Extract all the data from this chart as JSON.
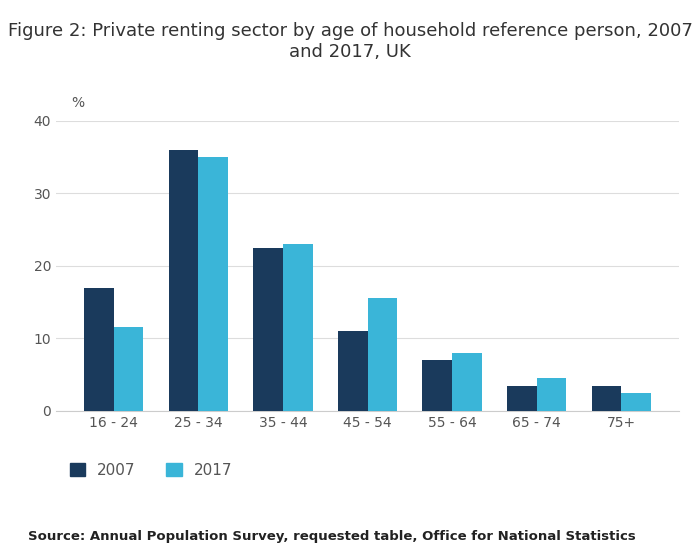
{
  "title": "Figure 2: Private renting sector by age of household reference person, 2007\nand 2017, UK",
  "categories": [
    "16 - 24",
    "25 - 34",
    "35 - 44",
    "45 - 54",
    "55 - 64",
    "65 - 74",
    "75+"
  ],
  "values_2007": [
    17,
    36,
    22.5,
    11,
    7,
    3.5,
    3.5
  ],
  "values_2017": [
    11.5,
    35,
    23,
    15.5,
    8,
    4.5,
    2.5
  ],
  "color_2007": "#1a3a5c",
  "color_2017": "#3ab5d8",
  "ylim": [
    0,
    40
  ],
  "yticks": [
    0,
    10,
    20,
    30,
    40
  ],
  "ylabel": "%",
  "source_text": "Source: Annual Population Survey, requested table, Office for National Statistics",
  "legend_labels": [
    "2007",
    "2017"
  ],
  "bar_width": 0.35,
  "background_color": "#ffffff"
}
